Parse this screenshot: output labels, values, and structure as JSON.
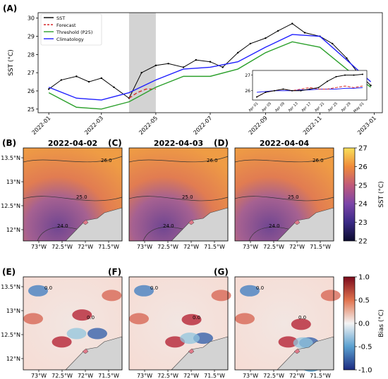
{
  "chart_data": [
    {
      "type": "line",
      "panel": "(A)",
      "ylabel": "SST (°C)",
      "x_ticks": [
        "2022-01",
        "2022-03",
        "2022-05",
        "2022-07",
        "2022-09",
        "2022-11",
        "2023-01"
      ],
      "y_ticks": [
        "25",
        "26",
        "27",
        "28",
        "29",
        "30"
      ],
      "ylim": [
        24.8,
        30.3
      ],
      "xlim": [
        "2021-12-20",
        "2023-01-10"
      ],
      "shaded_period": [
        "2022-04-01",
        "2022-05-01"
      ],
      "legend_position": "top-left",
      "grid": false,
      "series": [
        {
          "name": "SST",
          "color": "#000000",
          "style": "solid-markers",
          "x": [
            "2022-01-01",
            "2022-01-15",
            "2022-02-01",
            "2022-02-15",
            "2022-03-01",
            "2022-03-15",
            "2022-04-01",
            "2022-04-15",
            "2022-05-01",
            "2022-05-15",
            "2022-06-01",
            "2022-06-15",
            "2022-07-01",
            "2022-07-15",
            "2022-08-01",
            "2022-08-15",
            "2022-09-01",
            "2022-09-15",
            "2022-10-01",
            "2022-10-15",
            "2022-11-01",
            "2022-11-15",
            "2022-12-01",
            "2022-12-15",
            "2022-12-28"
          ],
          "y": [
            26.1,
            26.6,
            26.8,
            26.5,
            26.7,
            26.2,
            25.6,
            27.0,
            27.4,
            27.5,
            27.3,
            27.7,
            27.6,
            27.3,
            28.1,
            28.6,
            28.9,
            29.3,
            29.7,
            29.2,
            29.0,
            28.6,
            27.8,
            26.9,
            26.3
          ]
        },
        {
          "name": "Forecast",
          "color": "#d62728",
          "style": "dashed",
          "x": [
            "2022-04-01",
            "2022-04-10",
            "2022-04-20",
            "2022-05-01"
          ],
          "y": [
            25.6,
            25.9,
            26.1,
            26.1
          ]
        },
        {
          "name": "Threshold (P25)",
          "color": "#2ca02c",
          "style": "solid",
          "x": [
            "2022-01-01",
            "2022-02-01",
            "2022-03-01",
            "2022-04-01",
            "2022-05-01",
            "2022-06-01",
            "2022-07-01",
            "2022-08-01",
            "2022-09-01",
            "2022-10-01",
            "2022-11-01",
            "2022-12-01",
            "2022-12-28"
          ],
          "y": [
            25.9,
            25.1,
            25.0,
            25.4,
            26.2,
            26.8,
            26.8,
            27.2,
            28.1,
            28.7,
            28.4,
            27.2,
            26.2
          ]
        },
        {
          "name": "Climatology",
          "color": "#1f1fff",
          "style": "solid",
          "x": [
            "2022-01-01",
            "2022-02-01",
            "2022-03-01",
            "2022-04-01",
            "2022-05-01",
            "2022-06-01",
            "2022-07-01",
            "2022-08-01",
            "2022-09-01",
            "2022-10-01",
            "2022-11-01",
            "2022-12-01",
            "2022-12-28"
          ],
          "y": [
            26.2,
            25.6,
            25.5,
            25.9,
            26.6,
            27.2,
            27.3,
            27.6,
            28.4,
            29.1,
            29.0,
            27.7,
            26.5
          ]
        }
      ],
      "inset": {
        "x_ticks": [
          "Apr 01",
          "Apr 05",
          "Apr 09",
          "Apr 13",
          "Apr 17",
          "Apr 21",
          "Apr 25",
          "Apr 29",
          "May 01"
        ],
        "y_ticks": [
          "26",
          "27"
        ],
        "ylim": [
          25.4,
          27.3
        ],
        "sst": [
          25.6,
          25.9,
          26.0,
          26.1,
          26.0,
          26.0,
          26.1,
          26.2,
          26.6,
          26.9,
          27.0,
          27.0,
          27.05
        ],
        "forecast": [
          25.6,
          25.9,
          26.0,
          26.1,
          26.0,
          26.1,
          26.2,
          26.1,
          26.1,
          26.2,
          26.3,
          26.2,
          26.3
        ],
        "climatology": [
          25.9,
          25.95,
          26.0,
          26.0,
          26.0,
          26.05,
          26.05,
          26.1,
          26.1,
          26.1,
          26.15,
          26.15,
          26.2
        ]
      }
    },
    {
      "type": "heatmap",
      "panels": [
        {
          "letter": "(B)",
          "date": "2022-04-02"
        },
        {
          "letter": "(C)",
          "date": "2022-04-03"
        },
        {
          "letter": "(D)",
          "date": "2022-04-04"
        }
      ],
      "x_ticks": [
        "73°W",
        "72.5°W",
        "72°W",
        "71.5°W"
      ],
      "y_ticks": [
        "13.5°N",
        "13°N",
        "12.5°N",
        "12°N"
      ],
      "contour_labels": [
        "26.0",
        "25.0",
        "24.0",
        "25.0"
      ],
      "colorbar": {
        "label": "SST (°C)",
        "ticks": [
          "27",
          "26",
          "25",
          "24",
          "23",
          "22"
        ],
        "range": [
          22,
          27
        ]
      }
    },
    {
      "type": "heatmap",
      "panels": [
        {
          "letter": "(E)"
        },
        {
          "letter": "(F)"
        },
        {
          "letter": "(G)"
        }
      ],
      "x_ticks": [
        "73°W",
        "72.5°W",
        "72°W",
        "71.5°W"
      ],
      "y_ticks": [
        "13.5°N",
        "13°N",
        "12.5°N",
        "12°N"
      ],
      "contour_label": "0.0",
      "colorbar": {
        "label": "Bias (°C)",
        "ticks": [
          "1.0",
          "0.5",
          "0.0",
          "-0.5",
          "-1.0"
        ],
        "range": [
          -1,
          1
        ]
      }
    }
  ]
}
